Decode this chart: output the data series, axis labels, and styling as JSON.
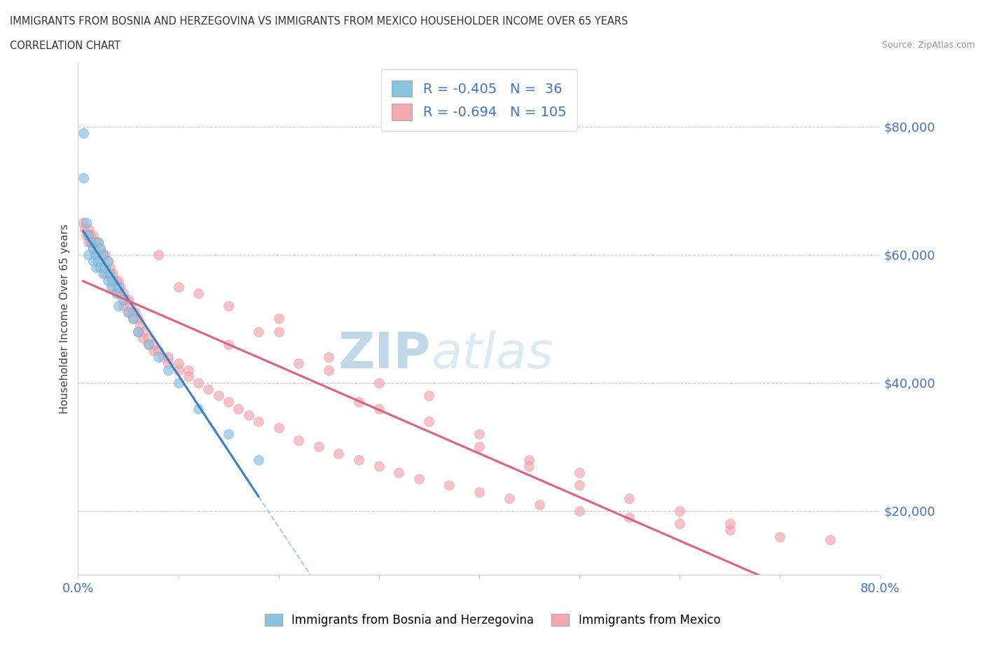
{
  "title_line1": "IMMIGRANTS FROM BOSNIA AND HERZEGOVINA VS IMMIGRANTS FROM MEXICO HOUSEHOLDER INCOME OVER 65 YEARS",
  "title_line2": "CORRELATION CHART",
  "source": "Source: ZipAtlas.com",
  "ylabel": "Householder Income Over 65 years",
  "xlim": [
    0.0,
    0.8
  ],
  "ylim": [
    10000,
    90000
  ],
  "yticks": [
    20000,
    40000,
    60000,
    80000
  ],
  "ytick_labels": [
    "$20,000",
    "$40,000",
    "$60,000",
    "$80,000"
  ],
  "xticks": [
    0.0,
    0.1,
    0.2,
    0.3,
    0.4,
    0.5,
    0.6,
    0.7,
    0.8
  ],
  "bosnia_color": "#89c4e1",
  "mexico_color": "#f4a8b0",
  "bosnia_line_color": "#3a7fc1",
  "mexico_line_color": "#e06080",
  "dashed_line_color": "#aac8e8",
  "R_bosnia": -0.405,
  "N_bosnia": 36,
  "R_mexico": -0.694,
  "N_mexico": 105,
  "watermark_zip": "ZIP",
  "watermark_atlas": "atlas",
  "bosnia_scatter_x": [
    0.005,
    0.005,
    0.008,
    0.01,
    0.01,
    0.013,
    0.015,
    0.015,
    0.017,
    0.018,
    0.02,
    0.02,
    0.022,
    0.022,
    0.025,
    0.025,
    0.027,
    0.03,
    0.03,
    0.032,
    0.033,
    0.035,
    0.038,
    0.04,
    0.04,
    0.045,
    0.05,
    0.055,
    0.06,
    0.07,
    0.08,
    0.09,
    0.1,
    0.12,
    0.15,
    0.18
  ],
  "bosnia_scatter_y": [
    79000,
    72000,
    65000,
    63000,
    60000,
    62000,
    61000,
    59000,
    60000,
    58000,
    62000,
    59000,
    61000,
    58000,
    60000,
    57000,
    58000,
    59000,
    56000,
    57000,
    55000,
    56000,
    54000,
    55000,
    52000,
    53000,
    51000,
    50000,
    48000,
    46000,
    44000,
    42000,
    40000,
    36000,
    32000,
    28000
  ],
  "mexico_scatter_x": [
    0.005,
    0.007,
    0.008,
    0.01,
    0.01,
    0.012,
    0.013,
    0.015,
    0.015,
    0.017,
    0.018,
    0.02,
    0.02,
    0.022,
    0.022,
    0.025,
    0.025,
    0.027,
    0.027,
    0.03,
    0.03,
    0.032,
    0.033,
    0.035,
    0.035,
    0.038,
    0.04,
    0.04,
    0.042,
    0.045,
    0.045,
    0.047,
    0.05,
    0.05,
    0.052,
    0.055,
    0.055,
    0.057,
    0.06,
    0.06,
    0.062,
    0.065,
    0.065,
    0.07,
    0.07,
    0.075,
    0.075,
    0.08,
    0.085,
    0.09,
    0.09,
    0.1,
    0.1,
    0.11,
    0.11,
    0.12,
    0.13,
    0.14,
    0.15,
    0.16,
    0.17,
    0.18,
    0.2,
    0.22,
    0.24,
    0.26,
    0.28,
    0.3,
    0.32,
    0.34,
    0.37,
    0.4,
    0.43,
    0.46,
    0.5,
    0.55,
    0.6,
    0.65,
    0.7,
    0.75,
    0.3,
    0.2,
    0.25,
    0.35,
    0.4,
    0.15,
    0.45,
    0.5,
    0.35,
    0.25,
    0.2,
    0.3,
    0.4,
    0.45,
    0.5,
    0.55,
    0.6,
    0.65,
    0.15,
    0.1,
    0.08,
    0.12,
    0.18,
    0.22,
    0.28
  ],
  "mexico_scatter_y": [
    65000,
    64000,
    63000,
    64000,
    62000,
    63000,
    62000,
    63000,
    61000,
    62000,
    60000,
    62000,
    60000,
    61000,
    59000,
    60000,
    58000,
    60000,
    57000,
    59000,
    57000,
    58000,
    56000,
    57000,
    55000,
    56000,
    56000,
    54000,
    55000,
    54000,
    52000,
    53000,
    53000,
    51000,
    52000,
    51000,
    50000,
    51000,
    50000,
    48000,
    49000,
    48000,
    47000,
    47000,
    46000,
    46000,
    45000,
    45000,
    44000,
    44000,
    43000,
    43000,
    42000,
    42000,
    41000,
    40000,
    39000,
    38000,
    37000,
    36000,
    35000,
    34000,
    33000,
    31000,
    30000,
    29000,
    28000,
    27000,
    26000,
    25000,
    24000,
    23000,
    22000,
    21000,
    20000,
    19000,
    18000,
    17000,
    16000,
    15500,
    36000,
    48000,
    42000,
    34000,
    30000,
    52000,
    28000,
    26000,
    38000,
    44000,
    50000,
    40000,
    32000,
    27000,
    24000,
    22000,
    20000,
    18000,
    46000,
    55000,
    60000,
    54000,
    48000,
    43000,
    37000
  ]
}
